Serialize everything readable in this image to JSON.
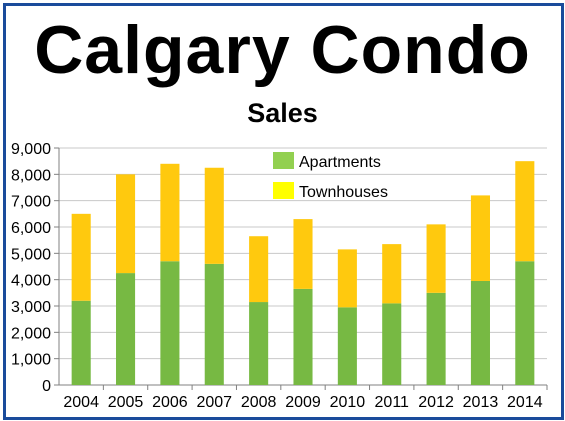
{
  "chart_data": {
    "type": "bar",
    "stacked": true,
    "title": "Calgary Condo",
    "subtitle": "Sales",
    "categories": [
      "2004",
      "2005",
      "2006",
      "2007",
      "2008",
      "2009",
      "2010",
      "2011",
      "2012",
      "2013",
      "2014"
    ],
    "series": [
      {
        "name": "Apartments",
        "color": "#77b943",
        "values": [
          3200,
          4250,
          4700,
          4600,
          3150,
          3650,
          2950,
          3100,
          3500,
          3950,
          4700
        ]
      },
      {
        "name": "Townhouses",
        "color": "#ffc90e",
        "values": [
          3300,
          3750,
          3700,
          3650,
          2500,
          2650,
          2200,
          2250,
          2600,
          3250,
          3800
        ]
      }
    ],
    "ylim": [
      0,
      9000
    ],
    "yticks": [
      "0",
      "1,000",
      "2,000",
      "3,000",
      "4,000",
      "5,000",
      "6,000",
      "7,000",
      "8,000",
      "9,000"
    ],
    "grid": true,
    "legend_position": "top-center"
  },
  "legend": {
    "items": [
      {
        "label": "Apartments",
        "swatch_color": "#92d050"
      },
      {
        "label": "Townhouses",
        "swatch_color": "#ffff00"
      }
    ]
  }
}
